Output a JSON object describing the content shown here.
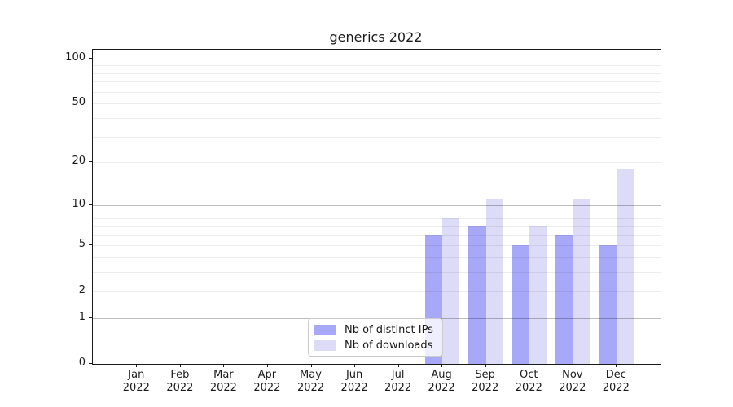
{
  "chart_data": {
    "type": "bar",
    "title": "generics 2022",
    "categories": [
      "Jan 2022",
      "Feb 2022",
      "Mar 2022",
      "Apr 2022",
      "May 2022",
      "Jun 2022",
      "Jul 2022",
      "Aug 2022",
      "Sep 2022",
      "Oct 2022",
      "Nov 2022",
      "Dec 2022"
    ],
    "series": [
      {
        "name": "Nb of distinct IPs",
        "color": "#a8a8f8",
        "values": [
          0,
          0,
          0,
          0,
          0,
          0,
          0,
          6,
          7,
          5,
          6,
          5
        ]
      },
      {
        "name": "Nb of downloads",
        "color": "#dcdcf8",
        "values": [
          0,
          0,
          0,
          0,
          0,
          0,
          0,
          8,
          11,
          7,
          11,
          18
        ]
      }
    ],
    "xlabel": "",
    "ylabel": "",
    "yscale": "log1p",
    "ylim": [
      0,
      114
    ],
    "yticks": [
      0,
      1,
      2,
      5,
      10,
      20,
      50,
      100
    ],
    "ymajor_gridlines": [
      1,
      10,
      100
    ],
    "grid": "horizontal",
    "legend_position": "lower-center-inside"
  }
}
